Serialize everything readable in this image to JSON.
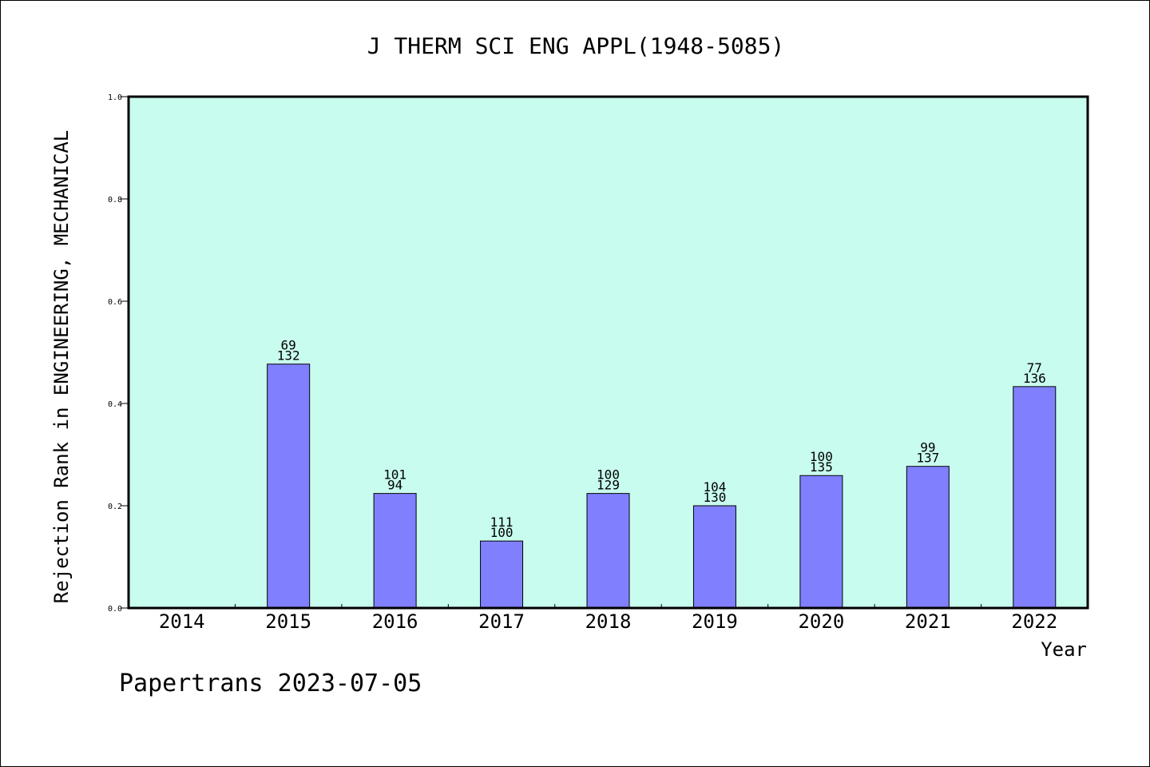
{
  "chart_data": {
    "type": "bar",
    "title": "J THERM SCI ENG APPL(1948-5085)",
    "xlabel": "Year",
    "ylabel": "Rejection Rank in ENGINEERING, MECHANICAL",
    "ylim": [
      0,
      1.0
    ],
    "yticks": [
      "0.0",
      "0.2",
      "0.4",
      "0.6",
      "0.8",
      "1.0"
    ],
    "ytick_values": [
      0,
      0.2,
      0.4,
      0.6,
      0.8,
      1.0
    ],
    "categories": [
      "2014",
      "2015",
      "2016",
      "2017",
      "2018",
      "2019",
      "2020",
      "2021",
      "2022"
    ],
    "values": [
      null,
      0.477,
      0.224,
      0.131,
      0.224,
      0.2,
      0.259,
      0.277,
      0.433
    ],
    "data_labels": [
      [],
      [
        "69",
        "132"
      ],
      [
        "101",
        "94"
      ],
      [
        "111",
        "100"
      ],
      [
        "100",
        "129"
      ],
      [
        "104",
        "130"
      ],
      [
        "100",
        "135"
      ],
      [
        "99",
        "137"
      ],
      [
        "77",
        "136"
      ]
    ],
    "grid": false,
    "colors": {
      "plot_background": "#c8fcee",
      "bar_fill": "#8080ff",
      "bar_stroke": "#000000",
      "axis": "#000000"
    }
  },
  "footer": "Papertrans 2023-07-05"
}
